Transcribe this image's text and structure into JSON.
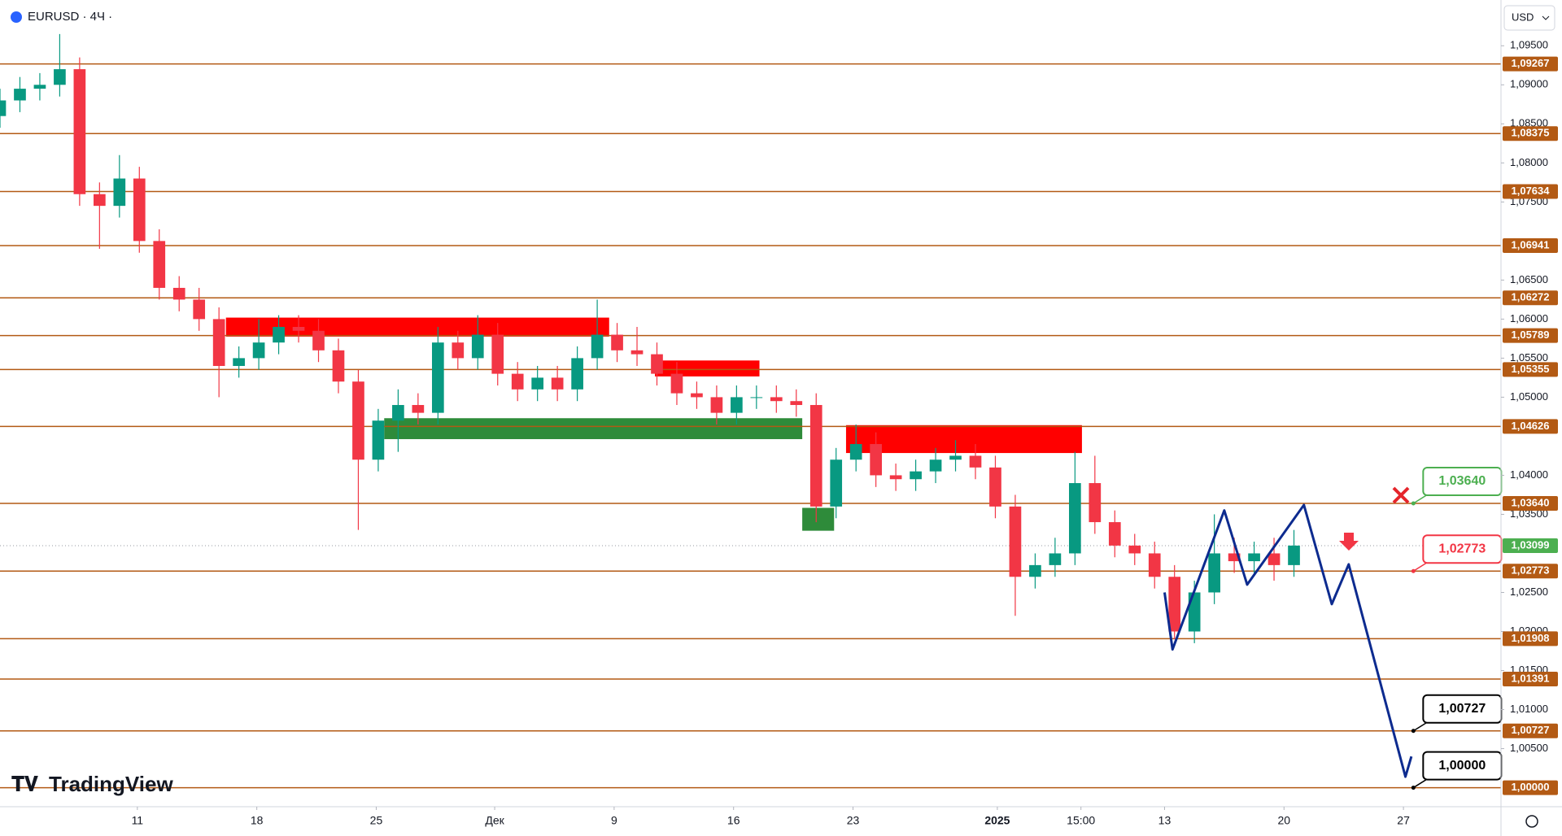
{
  "header": {
    "symbol": "EURUSD · 4Ч ·",
    "currency": "USD",
    "logo": "TradingView"
  },
  "chart_data": {
    "type": "candlestick",
    "x": [
      0,
      5,
      10,
      15,
      20,
      25,
      30,
      35,
      40,
      45,
      50,
      55,
      60,
      65,
      70,
      75,
      80,
      85,
      90,
      95,
      100,
      105,
      110,
      115,
      120,
      125,
      130,
      135,
      140,
      145,
      150,
      155,
      160,
      165,
      170,
      175,
      180,
      185,
      190,
      195,
      200,
      205,
      210,
      215,
      220,
      225,
      230,
      235,
      240,
      245,
      250,
      255,
      260,
      265,
      270,
      275,
      280,
      285,
      290,
      295,
      300,
      305,
      310,
      315,
      320,
      325
    ],
    "open": [
      1.086,
      1.088,
      1.0895,
      1.09,
      1.092,
      1.076,
      1.0745,
      1.078,
      1.07,
      1.064,
      1.0625,
      1.06,
      1.054,
      1.055,
      1.057,
      1.059,
      1.0585,
      1.056,
      1.052,
      1.042,
      1.047,
      1.049,
      1.048,
      1.057,
      1.055,
      1.058,
      1.053,
      1.051,
      1.0525,
      1.051,
      1.055,
      1.058,
      1.056,
      1.0555,
      1.053,
      1.0505,
      1.05,
      1.048,
      1.05,
      1.05,
      1.0495,
      1.049,
      1.036,
      1.042,
      1.044,
      1.04,
      1.0395,
      1.0405,
      1.042,
      1.0425,
      1.041,
      1.036,
      1.027,
      1.0285,
      1.03,
      1.039,
      1.034,
      1.031,
      1.03,
      1.027,
      1.02,
      1.025,
      1.03,
      1.029,
      1.03,
      1.0285
    ],
    "high": [
      1.0895,
      1.091,
      1.0915,
      1.0965,
      1.0935,
      1.0775,
      1.081,
      1.0795,
      1.0715,
      1.0655,
      1.064,
      1.0615,
      1.0565,
      1.06,
      1.0605,
      1.0605,
      1.06,
      1.0575,
      1.0535,
      1.0485,
      1.051,
      1.0505,
      1.059,
      1.0585,
      1.0605,
      1.0595,
      1.0545,
      1.054,
      1.054,
      1.0565,
      1.0625,
      1.0595,
      1.059,
      1.057,
      1.0545,
      1.052,
      1.0515,
      1.0515,
      1.0515,
      1.0515,
      1.051,
      1.0505,
      1.0435,
      1.0465,
      1.0455,
      1.0415,
      1.042,
      1.0435,
      1.0445,
      1.044,
      1.0425,
      1.0375,
      1.03,
      1.032,
      1.043,
      1.0425,
      1.0355,
      1.0325,
      1.0315,
      1.0285,
      1.0265,
      1.035,
      1.032,
      1.0315,
      1.032,
      1.033
    ],
    "low": [
      1.0845,
      1.0865,
      1.088,
      1.0885,
      1.0745,
      1.069,
      1.073,
      1.0685,
      1.0625,
      1.061,
      1.0585,
      1.05,
      1.0525,
      1.0535,
      1.0555,
      1.057,
      1.0545,
      1.0505,
      1.033,
      1.0405,
      1.043,
      1.0465,
      1.0465,
      1.0535,
      1.0535,
      1.0515,
      1.0495,
      1.0495,
      1.0495,
      1.0495,
      1.0535,
      1.0545,
      1.054,
      1.0515,
      1.049,
      1.0485,
      1.0465,
      1.0465,
      1.0485,
      1.048,
      1.0475,
      1.034,
      1.0345,
      1.0405,
      1.0385,
      1.038,
      1.038,
      1.039,
      1.0405,
      1.0395,
      1.0345,
      1.022,
      1.0255,
      1.027,
      1.0285,
      1.0325,
      1.0295,
      1.0285,
      1.0255,
      1.019,
      1.0185,
      1.0235,
      1.0275,
      1.0275,
      1.0265,
      1.027
    ],
    "close": [
      1.088,
      1.0895,
      1.09,
      1.092,
      1.076,
      1.0745,
      1.078,
      1.07,
      1.064,
      1.0625,
      1.06,
      1.054,
      1.055,
      1.057,
      1.059,
      1.0585,
      1.056,
      1.052,
      1.042,
      1.047,
      1.049,
      1.048,
      1.057,
      1.055,
      1.058,
      1.053,
      1.051,
      1.0525,
      1.051,
      1.055,
      1.058,
      1.056,
      1.0555,
      1.053,
      1.0505,
      1.05,
      1.048,
      1.05,
      1.05,
      1.0495,
      1.049,
      1.036,
      1.042,
      1.044,
      1.04,
      1.0395,
      1.0405,
      1.042,
      1.0425,
      1.041,
      1.036,
      1.027,
      1.0285,
      1.03,
      1.039,
      1.034,
      1.031,
      1.03,
      1.027,
      1.02,
      1.025,
      1.03,
      1.029,
      1.03,
      1.0285,
      1.031
    ],
    "colors": {
      "up": "#089981",
      "down": "#f23645"
    },
    "xlim": [
      0,
      377
    ],
    "xticks": [
      {
        "value": 34.5,
        "label": "11"
      },
      {
        "value": 64.5,
        "label": "18"
      },
      {
        "value": 94.5,
        "label": "25"
      },
      {
        "value": 124.25,
        "label": "Дек"
      },
      {
        "value": 154.25,
        "label": "9"
      },
      {
        "value": 184.25,
        "label": "16"
      },
      {
        "value": 214.25,
        "label": "23"
      },
      {
        "value": 250.5,
        "label": "2025"
      },
      {
        "value": 271.5,
        "label": "15:00"
      },
      {
        "value": 292.5,
        "label": "13"
      },
      {
        "value": 322.5,
        "label": "20"
      },
      {
        "value": 352.5,
        "label": "27"
      }
    ],
    "ylim": [
      0.99756,
      1.10086
    ],
    "yticks": [
      {
        "value": 1.095,
        "label": "1,09500"
      },
      {
        "value": 1.09,
        "label": "1,09000"
      },
      {
        "value": 1.085,
        "label": "1,08500"
      },
      {
        "value": 1.08,
        "label": "1,08000"
      },
      {
        "value": 1.075,
        "label": "1,07500"
      },
      {
        "value": 1.065,
        "label": "1,06500"
      },
      {
        "value": 1.06,
        "label": "1,06000"
      },
      {
        "value": 1.055,
        "label": "1,05500"
      },
      {
        "value": 1.05,
        "label": "1,05000"
      },
      {
        "value": 1.04,
        "label": "1,04000"
      },
      {
        "value": 1.035,
        "label": "1,03500"
      },
      {
        "value": 1.025,
        "label": "1,02500"
      },
      {
        "value": 1.02,
        "label": "1,02000"
      },
      {
        "value": 1.015,
        "label": "1,01500"
      },
      {
        "value": 1.01,
        "label": "1,01000"
      },
      {
        "value": 1.005,
        "label": "1,00500"
      }
    ],
    "levels": {
      "color": "#b35a14",
      "values": [
        1.09267,
        1.08375,
        1.07634,
        1.06941,
        1.06272,
        1.05789,
        1.05355,
        1.04626,
        1.0364,
        1.02773,
        1.01908,
        1.01391,
        1.00727,
        1.0
      ],
      "labels": [
        "1,09267",
        "1,08375",
        "1,07634",
        "1,06941",
        "1,06272",
        "1,05789",
        "1,05355",
        "1,04626",
        "1,03640",
        "1,02773",
        "1,01908",
        "1,01391",
        "1,00727",
        "1,00000"
      ]
    },
    "current_price": {
      "value": 1.03099,
      "label": "1,03099",
      "color": "#4caf50"
    },
    "zones": [
      {
        "x": [
          56.75,
          153
        ],
        "y": [
          1.05776,
          1.06019
        ],
        "color": "#ff0000"
      },
      {
        "x": [
          164.5,
          190.75
        ],
        "y": [
          1.05266,
          1.0547
        ],
        "color": "#ff0000"
      },
      {
        "x": [
          212.5,
          271.75
        ],
        "y": [
          1.04285,
          1.04642
        ],
        "color": "#ff0000"
      },
      {
        "x": [
          96.5,
          201.5
        ],
        "y": [
          1.04463,
          1.04731
        ],
        "color": "#2e8b3a"
      },
      {
        "x": [
          201.5,
          209.5
        ],
        "y": [
          1.0329,
          1.03583
        ],
        "color": "#2e8b3a"
      }
    ],
    "projection": {
      "color": "#0d2b8f",
      "x": [
        292.5,
        294.5,
        307.5,
        313.25,
        327.5,
        334.5,
        338.75,
        353,
        354.5
      ],
      "values": [
        1.025,
        1.0177,
        1.0355,
        1.026,
        1.0362,
        1.0235,
        1.0286,
        1.0014,
        1.004
      ]
    },
    "callouts": [
      {
        "x": 355,
        "value": 1.0364,
        "label": "1,03640",
        "color": "#4caf50"
      },
      {
        "x": 355,
        "value": 1.02773,
        "label": "1,02773",
        "color": "#f23645"
      },
      {
        "x": 355,
        "value": 1.00727,
        "label": "1,00727",
        "color": "#000000"
      },
      {
        "x": 355,
        "value": 1.0,
        "label": "1,00000",
        "color": "#000000"
      }
    ]
  }
}
